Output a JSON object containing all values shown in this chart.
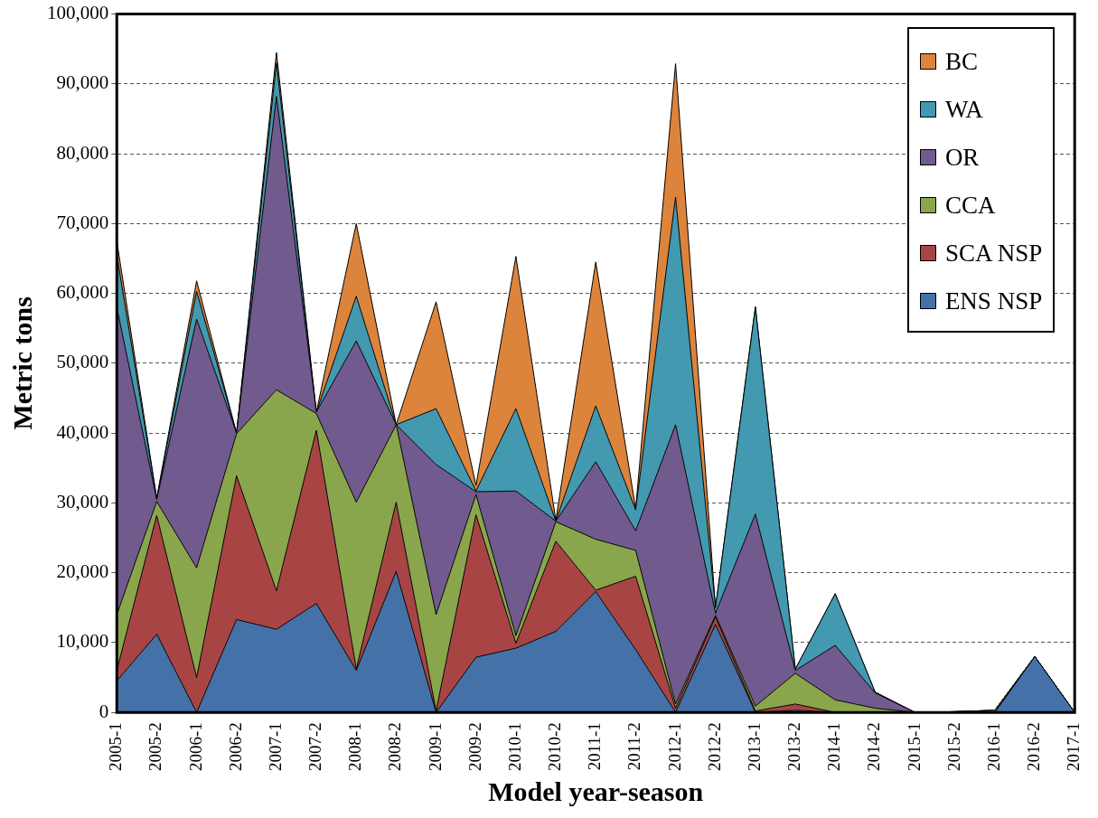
{
  "chart_data": {
    "type": "area",
    "stacked": true,
    "xlabel": "Model year-season",
    "ylabel": "Metric tons",
    "categories": [
      "2005-1",
      "2005-2",
      "2006-1",
      "2006-2",
      "2007-1",
      "2007-2",
      "2008-1",
      "2008-2",
      "2009-1",
      "2009-2",
      "2010-1",
      "2010-2",
      "2011-1",
      "2011-2",
      "2012-1",
      "2012-2",
      "2013-1",
      "2013-2",
      "2014-1",
      "2014-2",
      "2015-1",
      "2015-2",
      "2016-1",
      "2016-2",
      "2017-1"
    ],
    "series": [
      {
        "name": "ENS NSP",
        "color": "#4472a8",
        "values": [
          4500,
          11200,
          0,
          13300,
          11900,
          15600,
          6000,
          20200,
          0,
          7900,
          9200,
          11600,
          17300,
          9000,
          0,
          12600,
          0,
          300,
          0,
          0,
          0,
          0,
          0,
          8000,
          0
        ]
      },
      {
        "name": "SCA NSP",
        "color": "#a84544",
        "values": [
          1500,
          17000,
          5000,
          20600,
          5500,
          24800,
          200,
          9900,
          200,
          20400,
          700,
          12900,
          200,
          10500,
          600,
          1100,
          200,
          900,
          0,
          0,
          0,
          0,
          0,
          0,
          0
        ]
      },
      {
        "name": "CCA",
        "color": "#8aa64c",
        "values": [
          8000,
          2000,
          15700,
          6000,
          28800,
          2400,
          23900,
          11100,
          13800,
          2900,
          1100,
          2800,
          7300,
          3700,
          600,
          200,
          700,
          4400,
          1800,
          600,
          0,
          100,
          300,
          0,
          0
        ]
      },
      {
        "name": "OR",
        "color": "#715a8e",
        "values": [
          44000,
          300,
          35600,
          100,
          42000,
          200,
          23100,
          0,
          21500,
          400,
          20700,
          100,
          11100,
          2800,
          40000,
          300,
          27500,
          400,
          7800,
          2200,
          0,
          0,
          0,
          0,
          0
        ]
      },
      {
        "name": "WA",
        "color": "#4299b0",
        "values": [
          7500,
          100,
          4000,
          0,
          4800,
          0,
          6400,
          0,
          8000,
          100,
          11800,
          0,
          8000,
          3000,
          32600,
          800,
          29600,
          200,
          7400,
          100,
          0,
          0,
          0,
          0,
          0
        ]
      },
      {
        "name": "BC",
        "color": "#dd843c",
        "values": [
          2000,
          100,
          1500,
          0,
          1500,
          0,
          10400,
          0,
          15300,
          800,
          21800,
          100,
          20600,
          200,
          19100,
          0,
          100,
          0,
          0,
          0,
          0,
          0,
          0,
          0,
          0
        ]
      }
    ],
    "ylim": [
      0,
      100000
    ],
    "yticks": [
      0,
      {
        "value": 10000,
        "label": "10,000"
      },
      {
        "value": 20000,
        "label": "20,000"
      },
      {
        "value": 30000,
        "label": "30,000"
      },
      {
        "value": 40000,
        "label": "40,000"
      },
      {
        "value": 50000,
        "label": "50,000"
      },
      {
        "value": 60000,
        "label": "60,000"
      },
      {
        "value": 70000,
        "label": "70,000"
      },
      {
        "value": 80000,
        "label": "80,000"
      },
      {
        "value": 90000,
        "label": "90,000"
      },
      {
        "value": 100000,
        "label": "100,000"
      }
    ],
    "grid": "y",
    "legend": "top right",
    "marker": "none"
  }
}
